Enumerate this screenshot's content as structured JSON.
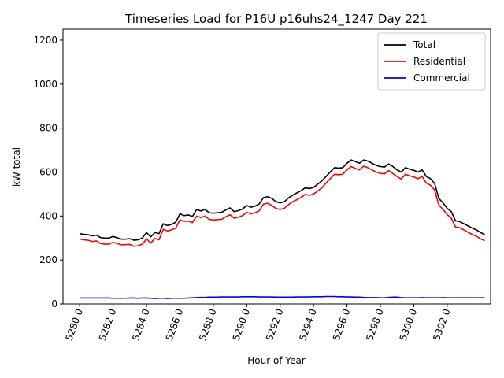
{
  "chart_data": {
    "type": "line",
    "title": "Timeseries Load for P16U p16uhs24_1247  Day 221",
    "xlabel": "Hour of Year",
    "ylabel": "kW total",
    "xlim": [
      5279.0,
      5304.6
    ],
    "ylim": [
      0,
      1250
    ],
    "xticks": [
      5280,
      5282,
      5284,
      5286,
      5288,
      5290,
      5292,
      5294,
      5296,
      5298,
      5300,
      5302
    ],
    "xtick_labels": [
      "5280.0",
      "5282.0",
      "5284.0",
      "5286.0",
      "5288.0",
      "5290.0",
      "5292.0",
      "5294.0",
      "5296.0",
      "5298.0",
      "5300.0",
      "5302.0"
    ],
    "yticks": [
      0,
      200,
      400,
      600,
      800,
      1000,
      1200
    ],
    "ytick_labels": [
      "0",
      "200",
      "400",
      "600",
      "800",
      "1000",
      "1200"
    ],
    "grid": false,
    "legend_position": "top-right",
    "x_start": 5280.0,
    "x_step": 0.25,
    "series": [
      {
        "name": "Total",
        "color": "#000000",
        "values": [
          320,
          317,
          315,
          310,
          313,
          302,
          300,
          300,
          307,
          301,
          295,
          295,
          297,
          290,
          292,
          300,
          325,
          305,
          325,
          320,
          365,
          357,
          362,
          372,
          410,
          402,
          405,
          398,
          430,
          423,
          430,
          415,
          413,
          415,
          417,
          428,
          437,
          420,
          425,
          432,
          448,
          440,
          445,
          455,
          484,
          488,
          480,
          465,
          460,
          465,
          482,
          495,
          505,
          515,
          528,
          525,
          530,
          545,
          560,
          580,
          600,
          620,
          618,
          620,
          640,
          655,
          648,
          640,
          655,
          650,
          640,
          630,
          625,
          623,
          637,
          625,
          610,
          600,
          620,
          613,
          608,
          600,
          610,
          580,
          570,
          548,
          480,
          460,
          435,
          420,
          378,
          375,
          365,
          355,
          345,
          337,
          325,
          315
        ]
      },
      {
        "name": "Residential",
        "color": "#ff0000",
        "values": [
          295,
          292,
          290,
          284,
          287,
          275,
          272,
          272,
          280,
          275,
          269,
          270,
          271,
          262,
          265,
          272,
          296,
          277,
          298,
          292,
          340,
          332,
          337,
          345,
          383,
          376,
          377,
          370,
          400,
          393,
          400,
          385,
          382,
          384,
          385,
          397,
          406,
          390,
          395,
          402,
          417,
          410,
          415,
          424,
          454,
          458,
          448,
          434,
          430,
          435,
          452,
          465,
          474,
          485,
          498,
          494,
          500,
          514,
          528,
          550,
          570,
          590,
          588,
          590,
          610,
          625,
          617,
          610,
          627,
          620,
          610,
          600,
          594,
          592,
          607,
          593,
          580,
          568,
          590,
          583,
          578,
          570,
          580,
          550,
          540,
          518,
          450,
          430,
          407,
          390,
          350,
          347,
          337,
          326,
          316,
          308,
          296,
          288
        ]
      },
      {
        "name": "Commercial",
        "color": "#0000ff",
        "values": [
          27,
          27,
          27,
          27,
          27,
          27,
          27,
          27,
          26,
          26,
          26,
          26,
          27,
          27,
          26,
          27,
          27,
          26,
          25,
          26,
          26,
          25,
          26,
          26,
          26,
          26,
          27,
          28,
          29,
          30,
          30,
          31,
          31,
          31,
          32,
          32,
          32,
          32,
          32,
          33,
          33,
          33,
          33,
          32,
          32,
          32,
          32,
          31,
          31,
          31,
          31,
          31,
          32,
          32,
          32,
          32,
          33,
          33,
          33,
          34,
          34,
          34,
          33,
          33,
          32,
          32,
          31,
          31,
          30,
          29,
          29,
          29,
          28,
          28,
          30,
          31,
          31,
          29,
          28,
          28,
          28,
          28,
          29,
          28,
          28,
          28,
          28,
          29,
          28,
          28,
          28,
          28,
          28,
          28,
          28,
          28,
          28,
          28
        ]
      }
    ]
  }
}
